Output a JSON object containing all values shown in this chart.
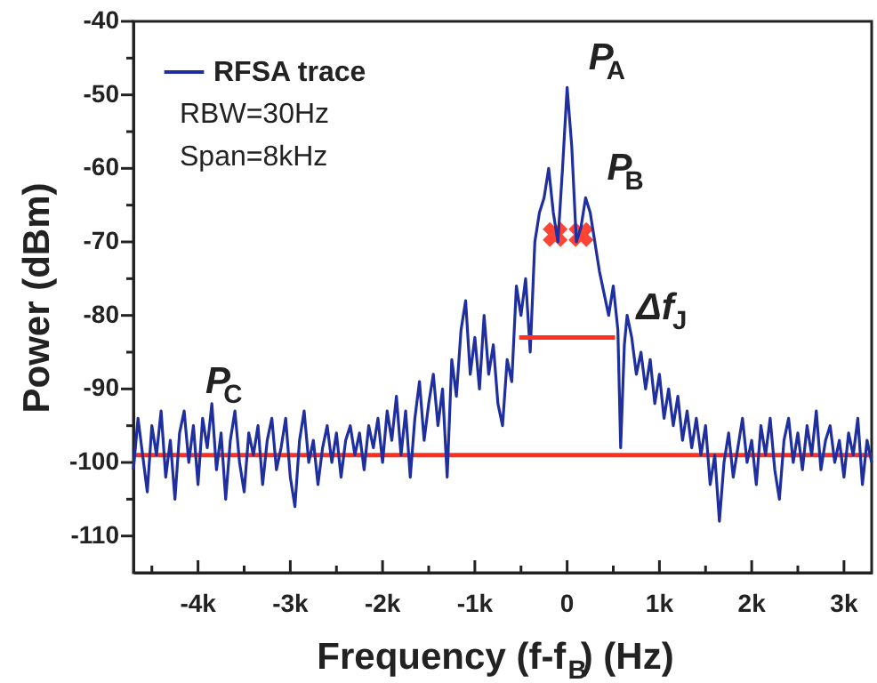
{
  "chart_data": {
    "type": "line",
    "xlabel": "Frequency (f-f$_{B}$) (Hz)",
    "ylabel": "Power (dBm)",
    "xlim": [
      -4700,
      3300
    ],
    "ylim": [
      -115,
      -40
    ],
    "xticks": [
      {
        "value": -4500,
        "label": null
      },
      {
        "value": -4000,
        "label": "-4k"
      },
      {
        "value": -3500,
        "label": null
      },
      {
        "value": -3000,
        "label": "-3k"
      },
      {
        "value": -2500,
        "label": null
      },
      {
        "value": -2000,
        "label": "-2k"
      },
      {
        "value": -1500,
        "label": null
      },
      {
        "value": -1000,
        "label": "-1k"
      },
      {
        "value": -500,
        "label": null
      },
      0,
      {
        "value": 500,
        "label": null
      },
      {
        "value": 1000,
        "label": "1k"
      },
      {
        "value": 1500,
        "label": null
      },
      {
        "value": 2000,
        "label": "2k"
      },
      {
        "value": 2500,
        "label": null
      },
      {
        "value": 3000,
        "label": "3k"
      }
    ],
    "yticks": [
      -110,
      {
        "value": -105,
        "label": null
      },
      -100,
      {
        "value": -95,
        "label": null
      },
      -90,
      {
        "value": -85,
        "label": null
      },
      -80,
      {
        "value": -75,
        "label": null
      },
      -70,
      {
        "value": -65,
        "label": null
      },
      -60,
      {
        "value": -55,
        "label": null
      },
      -50,
      {
        "value": -45,
        "label": null
      },
      -40
    ],
    "grid": false,
    "legend": "top left",
    "series": [
      {
        "name": "RFSA trace",
        "color": "#1f2f9f",
        "x": [
          -4700,
          -4650,
          -4600,
          -4550,
          -4500,
          -4450,
          -4400,
          -4350,
          -4300,
          -4250,
          -4200,
          -4150,
          -4100,
          -4050,
          -4000,
          -3950,
          -3900,
          -3850,
          -3800,
          -3750,
          -3700,
          -3650,
          -3600,
          -3550,
          -3500,
          -3450,
          -3400,
          -3350,
          -3300,
          -3250,
          -3200,
          -3150,
          -3100,
          -3050,
          -3000,
          -2950,
          -2900,
          -2850,
          -2800,
          -2750,
          -2700,
          -2650,
          -2600,
          -2550,
          -2500,
          -2450,
          -2400,
          -2350,
          -2300,
          -2250,
          -2200,
          -2150,
          -2100,
          -2050,
          -2000,
          -1950,
          -1900,
          -1850,
          -1800,
          -1750,
          -1700,
          -1650,
          -1600,
          -1550,
          -1500,
          -1450,
          -1400,
          -1350,
          -1300,
          -1250,
          -1200,
          -1150,
          -1100,
          -1050,
          -1000,
          -950,
          -900,
          -850,
          -800,
          -750,
          -700,
          -650,
          -600,
          -550,
          -500,
          -450,
          -400,
          -350,
          -300,
          -250,
          -200,
          -150,
          -100,
          -50,
          0,
          50,
          100,
          150,
          200,
          250,
          300,
          350,
          400,
          450,
          500,
          550,
          580,
          620,
          650,
          700,
          750,
          800,
          850,
          900,
          950,
          1000,
          1050,
          1100,
          1150,
          1200,
          1250,
          1300,
          1350,
          1400,
          1450,
          1500,
          1550,
          1600,
          1650,
          1700,
          1750,
          1800,
          1850,
          1900,
          1950,
          2000,
          2050,
          2100,
          2150,
          2200,
          2250,
          2300,
          2350,
          2400,
          2450,
          2500,
          2550,
          2600,
          2650,
          2700,
          2750,
          2800,
          2850,
          2900,
          2950,
          3000,
          3050,
          3100,
          3150,
          3200,
          3250,
          3300
        ],
        "values": [
          -101,
          -94,
          -99,
          -104,
          -95,
          -99,
          -93,
          -102,
          -97,
          -105,
          -96,
          -93,
          -100,
          -95,
          -103,
          -94,
          -98,
          -92,
          -101,
          -96,
          -105,
          -97,
          -93,
          -100,
          -104,
          -96,
          -99,
          -95,
          -103,
          -97,
          -94,
          -101,
          -98,
          -94,
          -102,
          -106,
          -97,
          -93,
          -100,
          -97,
          -103,
          -98,
          -95,
          -100,
          -96,
          -102,
          -97,
          -95,
          -99,
          -96,
          -101,
          -95,
          -98,
          -94,
          -100,
          -93,
          -97,
          -91,
          -99,
          -93,
          -102,
          -94,
          -89,
          -97,
          -92,
          -88,
          -95,
          -90,
          -102,
          -86,
          -91,
          -82,
          -78,
          -88,
          -83,
          -90,
          -80,
          -88,
          -84,
          -92,
          -95,
          -86,
          -89,
          -76,
          -80,
          -75,
          -85,
          -70,
          -66,
          -64,
          -60,
          -66,
          -70,
          -60,
          -49,
          -57,
          -70,
          -68,
          -64,
          -66,
          -70,
          -74,
          -77,
          -80,
          -76,
          -82,
          -98,
          -84,
          -80,
          -83,
          -88,
          -85,
          -90,
          -86,
          -92,
          -88,
          -94,
          -90,
          -95,
          -91,
          -97,
          -93,
          -98,
          -94,
          -99,
          -95,
          -103,
          -99,
          -108,
          -100,
          -96,
          -102,
          -98,
          -94,
          -100,
          -97,
          -103,
          -95,
          -99,
          -94,
          -101,
          -105,
          -97,
          -94,
          -100,
          -96,
          -101,
          -95,
          -99,
          -93,
          -101,
          -97,
          -95,
          -100,
          -97,
          -102,
          -96,
          -99,
          -94,
          -103,
          -97,
          -100
        ]
      },
      {
        "color": "#ff3020",
        "type": "scatter",
        "marker": "cross",
        "x": [
          -130,
          150
        ],
        "values": [
          -69,
          -69
        ]
      },
      {
        "color": "#ff3020",
        "type": "line",
        "x": [
          -520,
          520
        ],
        "values": [
          -83,
          -83
        ]
      }
    ],
    "ref_lines": [
      {
        "axis": "y",
        "value": -99,
        "color": "#ff3020"
      }
    ],
    "annotations": [
      "RBW=30Hz",
      "Span=8kHz",
      {
        "text": "P$_{A}$",
        "x": 0,
        "y": -49
      },
      {
        "text": "P$_{B}$",
        "x": 200,
        "y": -64
      },
      {
        "text": "P$_{C}$",
        "x": -4150,
        "y": -93
      },
      {
        "text": "Δf$_{J}$",
        "x": 520,
        "y": -83
      }
    ]
  }
}
